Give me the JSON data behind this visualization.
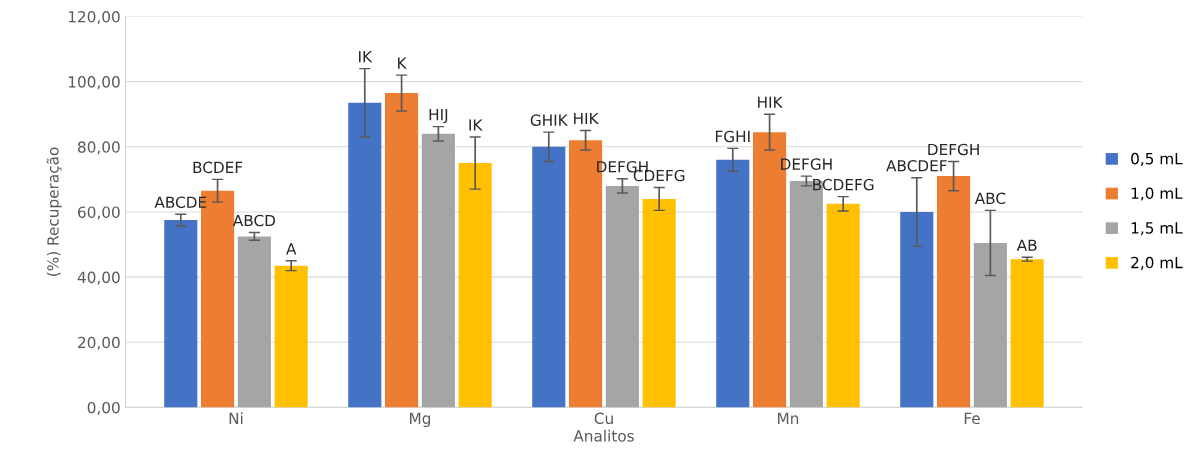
{
  "chart_data": {
    "type": "bar",
    "xlabel": "Analitos",
    "ylabel": "(%) Recuperação",
    "categories": [
      "Ni",
      "Mg",
      "Cu",
      "Mn",
      "Fe"
    ],
    "series": [
      {
        "name": "0,5 mL",
        "color": "#4472c4",
        "values": [
          57.5,
          93.5,
          80,
          76,
          60
        ],
        "errors": [
          1.8,
          10.5,
          4.5,
          3.5,
          10.5
        ],
        "value_labels": [
          "ABCDE",
          "IK",
          "GHIK",
          "FGHI",
          "ABCDEF"
        ]
      },
      {
        "name": "1,0 mL",
        "color": "#ed7d31",
        "values": [
          66.5,
          96.5,
          82,
          84.5,
          71
        ],
        "errors": [
          3.5,
          5.5,
          3,
          5.5,
          4.5
        ],
        "value_labels": [
          "BCDEF",
          "K",
          "HIK",
          "HIK",
          "DEFGH"
        ]
      },
      {
        "name": "1,5 mL",
        "color": "#a5a5a5",
        "values": [
          52.5,
          84,
          68,
          69.5,
          50.5
        ],
        "errors": [
          1.2,
          2.2,
          2.2,
          1.5,
          10
        ],
        "value_labels": [
          "ABCD",
          "HIJ",
          "DEFGH",
          "DEFGH",
          "ABC"
        ]
      },
      {
        "name": "2,0 mL",
        "color": "#ffc000",
        "values": [
          43.5,
          75,
          64,
          62.5,
          45.5
        ],
        "errors": [
          1.5,
          8,
          3.5,
          2.2,
          0.6
        ],
        "value_labels": [
          "A",
          "IK",
          "CDEFG",
          "BCDEFG",
          "AB"
        ]
      }
    ],
    "ylim": [
      0,
      120
    ],
    "yticks": [
      {
        "value": 0,
        "label": "0,00"
      },
      {
        "value": 20,
        "label": "20,00"
      },
      {
        "value": 40,
        "label": "40,00"
      },
      {
        "value": 60,
        "label": "60,00"
      },
      {
        "value": 80,
        "label": "80,00"
      },
      {
        "value": 100,
        "label": "100,00"
      },
      {
        "value": 120,
        "label": "120,00"
      }
    ],
    "grid": "y",
    "legend": "right"
  }
}
